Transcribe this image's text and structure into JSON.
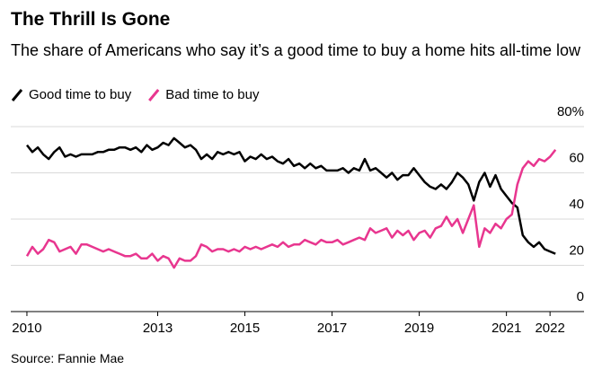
{
  "chart_data": {
    "type": "line",
    "title": "The Thrill Is Gone",
    "subtitle": "The share of Americans who say it’s a good time to buy a home hits all-time low",
    "source": "Source: Fannie Mae",
    "x": [
      2010,
      2010.125,
      2010.25,
      2010.375,
      2010.5,
      2010.625,
      2010.75,
      2010.875,
      2011,
      2011.125,
      2011.25,
      2011.375,
      2011.5,
      2011.625,
      2011.75,
      2011.875,
      2012,
      2012.125,
      2012.25,
      2012.375,
      2012.5,
      2012.625,
      2012.75,
      2012.875,
      2013,
      2013.125,
      2013.25,
      2013.375,
      2013.5,
      2013.625,
      2013.75,
      2013.875,
      2014,
      2014.125,
      2014.25,
      2014.375,
      2014.5,
      2014.625,
      2014.75,
      2014.875,
      2015,
      2015.125,
      2015.25,
      2015.375,
      2015.5,
      2015.625,
      2015.75,
      2015.875,
      2016,
      2016.125,
      2016.25,
      2016.375,
      2016.5,
      2016.625,
      2016.75,
      2016.875,
      2017,
      2017.125,
      2017.25,
      2017.375,
      2017.5,
      2017.625,
      2017.75,
      2017.875,
      2018,
      2018.125,
      2018.25,
      2018.375,
      2018.5,
      2018.625,
      2018.75,
      2018.875,
      2019,
      2019.125,
      2019.25,
      2019.375,
      2019.5,
      2019.625,
      2019.75,
      2019.875,
      2020,
      2020.125,
      2020.25,
      2020.375,
      2020.5,
      2020.625,
      2020.75,
      2020.875,
      2021,
      2021.125,
      2021.25,
      2021.375,
      2021.5,
      2021.625,
      2021.75,
      2021.875,
      2022,
      2022.125
    ],
    "series": [
      {
        "name": "Good time to buy",
        "color": "#000000",
        "values": [
          72,
          69,
          71,
          68,
          66,
          69,
          71,
          67,
          68,
          67,
          68,
          68,
          68,
          69,
          69,
          70,
          70,
          71,
          71,
          70,
          71,
          69,
          72,
          70,
          71,
          73,
          72,
          75,
          73,
          71,
          72,
          70,
          66,
          68,
          66,
          69,
          68,
          69,
          68,
          69,
          65,
          67,
          66,
          68,
          66,
          67,
          65,
          64,
          66,
          63,
          64,
          62,
          64,
          62,
          63,
          61,
          61,
          61,
          62,
          60,
          62,
          61,
          66,
          61,
          62,
          60,
          58,
          60,
          57,
          59,
          59,
          62,
          59,
          56,
          54,
          53,
          55,
          53,
          56,
          60,
          58,
          55,
          48,
          56,
          60,
          54,
          59,
          53,
          50,
          47,
          45,
          33,
          30,
          28,
          30,
          27,
          26,
          25
        ]
      },
      {
        "name": "Bad time to buy",
        "color": "#e8368f",
        "values": [
          24,
          28,
          25,
          27,
          31,
          30,
          26,
          27,
          28,
          25,
          29,
          29,
          28,
          27,
          26,
          27,
          26,
          25,
          24,
          24,
          25,
          23,
          23,
          25,
          22,
          24,
          23,
          19,
          23,
          22,
          22,
          24,
          29,
          28,
          26,
          27,
          27,
          26,
          27,
          26,
          28,
          27,
          28,
          27,
          28,
          29,
          28,
          30,
          28,
          29,
          29,
          31,
          30,
          29,
          31,
          30,
          30,
          31,
          29,
          30,
          31,
          32,
          31,
          36,
          34,
          35,
          36,
          32,
          35,
          33,
          35,
          31,
          34,
          35,
          32,
          36,
          37,
          41,
          37,
          40,
          34,
          40,
          46,
          28,
          36,
          34,
          38,
          36,
          40,
          42,
          55,
          62,
          65,
          63,
          66,
          65,
          67,
          70
        ]
      }
    ],
    "xlim": [
      2009.63,
      2022.78
    ],
    "xticks": [
      2010,
      2013,
      2015,
      2017,
      2019,
      2021,
      2022
    ],
    "ylim": [
      0,
      80
    ],
    "yticks": [
      {
        "value": 80,
        "label": "80%"
      },
      60,
      40,
      20,
      0
    ],
    "grid": true
  }
}
